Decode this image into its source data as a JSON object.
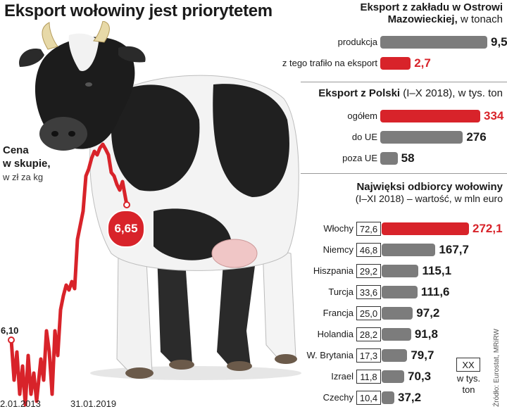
{
  "title": "Eksport wołowiny jest priorytetem",
  "price_chart": {
    "label_bold_1": "Cena",
    "label_bold_2": "w skupie,",
    "label_unit": "w zł za kg",
    "start_value": "6,10",
    "end_value": "6,65",
    "start_date": "2.01.2013",
    "end_date": "31.01.2019",
    "line_color": "#d8232a"
  },
  "plant": {
    "title_line1": "Eksport z zakładu w Ostrowi",
    "title_line2_bold": "Mazowieckiej,",
    "title_line2_light": "w tonach"
  },
  "poland": {
    "title_bold": "Eksport z Polski",
    "title_light": "(I–X 2018), w tys. ton"
  },
  "buyers": {
    "title_bold": "Najwięksi odbiorcy wołowiny",
    "title_light": "(I–XI 2018) – wartość, w mln euro",
    "legend_box": "XX",
    "legend_text_1": "w tys.",
    "legend_text_2": "ton"
  },
  "source": "Źródło: Eurostat, MRiRW",
  "colors": {
    "accent": "#d8232a",
    "bar": "#7c7c7c"
  },
  "chart_data": [
    {
      "type": "line",
      "title": "",
      "xlabel": "",
      "ylabel": "",
      "x": [
        "2.01.2013",
        "31.01.2019"
      ],
      "series": [
        {
          "values": [
            6.1,
            6.65
          ]
        }
      ],
      "annotations": [
        "6,10",
        "6,65"
      ]
    },
    {
      "type": "bar",
      "title": "Eksport z zakładu w Ostrowi Mazowieckiej, w tonach",
      "categories": [
        "produkcja",
        "z tego trafiło na eksport"
      ],
      "values": [
        9.5,
        2.7
      ],
      "value_labels": [
        "9,5",
        "2,7"
      ]
    },
    {
      "type": "bar",
      "title": "Eksport z Polski (I–X 2018), w tys. ton",
      "categories": [
        "ogółem",
        "do UE",
        "poza UE"
      ],
      "values": [
        334,
        276,
        58
      ],
      "value_labels": [
        "334",
        "276",
        "58"
      ]
    },
    {
      "type": "bar",
      "title": "Najwięksi odbiorcy wołowiny (I–XI 2018) – wartość, w mln euro",
      "categories": [
        "Włochy",
        "Niemcy",
        "Hiszpania",
        "Turcja",
        "Francja",
        "Holandia",
        "W. Brytania",
        "Izrael",
        "Czechy"
      ],
      "values": [
        272.1,
        167.7,
        115.1,
        111.6,
        97.2,
        91.8,
        79.7,
        70.3,
        37.2
      ],
      "value_labels": [
        "272,1",
        "167,7",
        "115,1",
        "111,6",
        "97,2",
        "91,8",
        "79,7",
        "70,3",
        "37,2"
      ],
      "tonnes": [
        "72,6",
        "46,8",
        "29,2",
        "33,6",
        "25,0",
        "28,2",
        "17,3",
        "11,8",
        "10,4"
      ]
    }
  ]
}
